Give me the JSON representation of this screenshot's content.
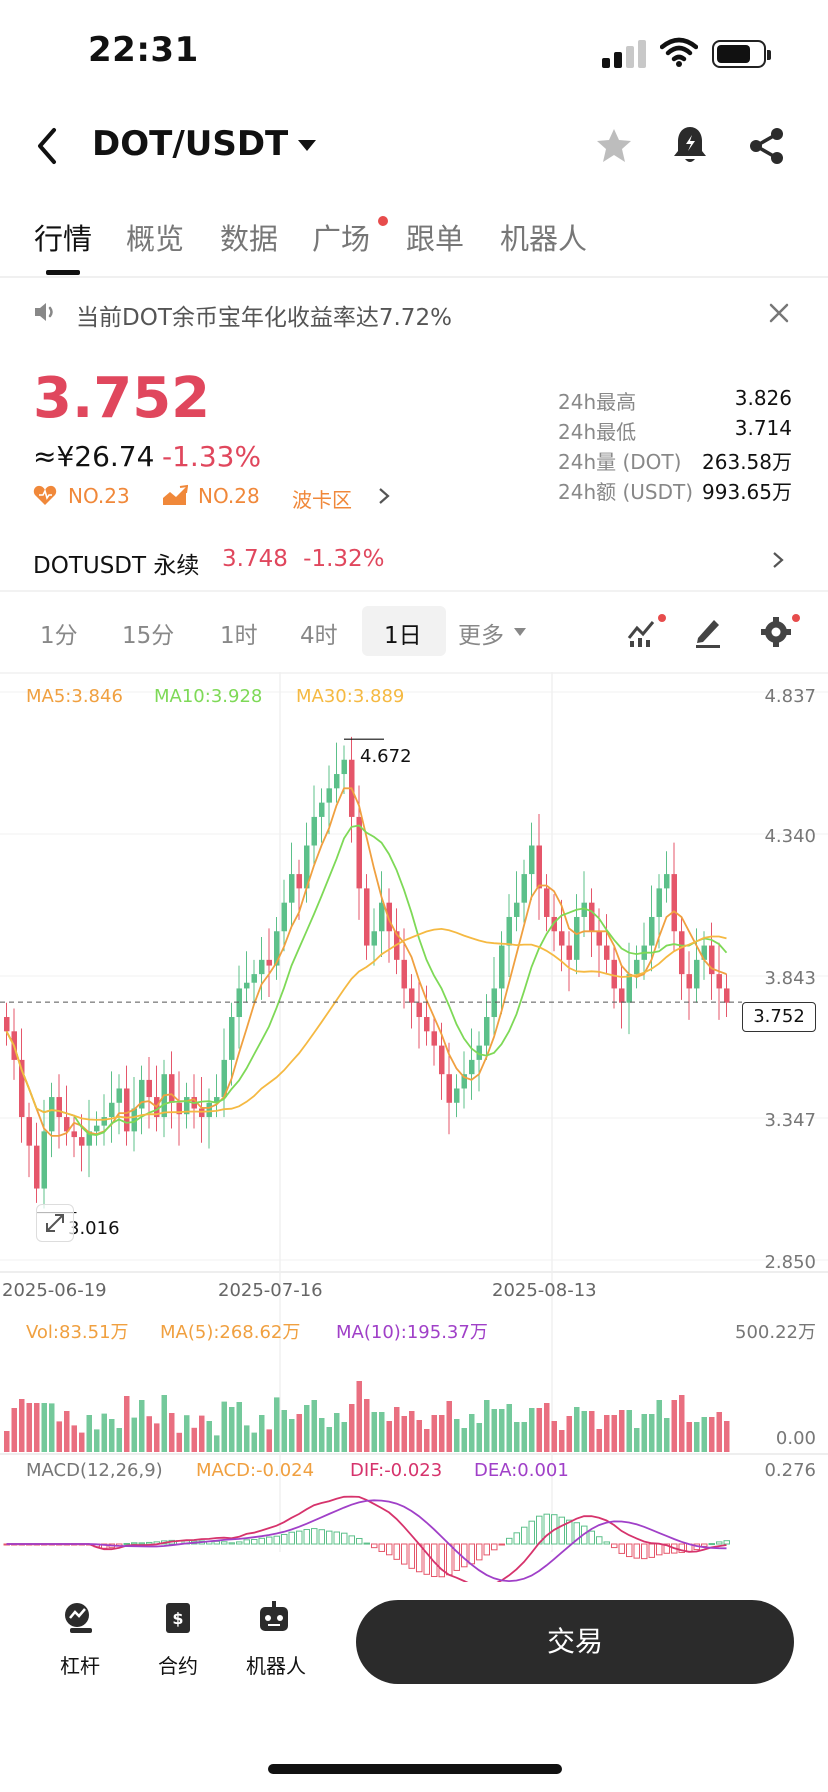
{
  "status_bar": {
    "time": "22:31"
  },
  "header": {
    "pair": "DOT/USDT"
  },
  "tabs": [
    {
      "label": "行情",
      "active": true
    },
    {
      "label": "概览"
    },
    {
      "label": "数据"
    },
    {
      "label": "广场",
      "dot": true
    },
    {
      "label": "跟单"
    },
    {
      "label": "机器人"
    }
  ],
  "notice": {
    "text": "当前DOT余币宝年化收益率达7.72%"
  },
  "price": {
    "last": "3.752",
    "cny": "≈¥26.74",
    "change": "-1.33%",
    "rank1": "NO.23",
    "rank2": "NO.28",
    "sector": "波卡区"
  },
  "stats": [
    {
      "label": "24h最高",
      "value": "3.826"
    },
    {
      "label": "24h最低",
      "value": "3.714"
    },
    {
      "label": "24h量 (DOT)",
      "value": "263.58万"
    },
    {
      "label": "24h额 (USDT)",
      "value": "993.65万"
    }
  ],
  "perpetual": {
    "label": "DOTUSDT 永续",
    "price": "3.748",
    "change": "-1.32%"
  },
  "intervals": [
    {
      "label": "1分"
    },
    {
      "label": "15分"
    },
    {
      "label": "1时"
    },
    {
      "label": "4时"
    },
    {
      "label": "1日",
      "active": true
    },
    {
      "label": "更多"
    }
  ],
  "colors": {
    "up": "#5cc08a",
    "down": "#e5566a",
    "ma5": "#f0a040",
    "ma10": "#7ed957",
    "ma30": "#f5b942"
  },
  "chart": {
    "ma_legend": {
      "ma5": "MA5:3.846",
      "ma10": "MA10:3.928",
      "ma30": "MA30:3.889"
    },
    "y_ticks": [
      "4.837",
      "4.340",
      "3.843",
      "3.347",
      "2.850"
    ],
    "x_ticks": [
      "2025-06-19",
      "2025-07-16",
      "2025-08-13"
    ],
    "high_label": "4.672",
    "low_label": "3.016",
    "last_tag": "3.752"
  },
  "volume": {
    "vol": "Vol:83.51万",
    "ma5": "MA(5):268.62万",
    "ma10": "MA(10):195.37万",
    "top": "500.22万",
    "bottom": "0.00"
  },
  "macd": {
    "title": "MACD(12,26,9)",
    "macd": "MACD:-0.024",
    "dif": "DIF:-0.023",
    "dea": "DEA:0.001",
    "top": "0.276"
  },
  "bottom_nav": [
    {
      "label": "杠杆"
    },
    {
      "label": "合约"
    },
    {
      "label": "机器人"
    }
  ],
  "trade_button": "交易",
  "chart_data": {
    "type": "candlestick",
    "y_range": [
      2.85,
      4.837
    ],
    "x_ticks": [
      "2025-06-19",
      "2025-07-16",
      "2025-08-13"
    ],
    "closes": [
      3.65,
      3.55,
      3.35,
      3.25,
      3.1,
      3.3,
      3.42,
      3.35,
      3.3,
      3.28,
      3.25,
      3.3,
      3.32,
      3.35,
      3.4,
      3.45,
      3.3,
      3.38,
      3.48,
      3.42,
      3.35,
      3.5,
      3.4,
      3.36,
      3.42,
      3.38,
      3.35,
      3.4,
      3.42,
      3.55,
      3.7,
      3.8,
      3.82,
      3.85,
      3.9,
      3.88,
      4.0,
      4.1,
      4.2,
      4.15,
      4.3,
      4.4,
      4.45,
      4.5,
      4.55,
      4.6,
      4.4,
      4.15,
      3.95,
      4.0,
      4.1,
      4.0,
      3.9,
      3.8,
      3.75,
      3.7,
      3.65,
      3.6,
      3.5,
      3.4,
      3.45,
      3.5,
      3.55,
      3.6,
      3.7,
      3.8,
      3.95,
      4.05,
      4.1,
      4.2,
      4.3,
      4.15,
      4.05,
      4.0,
      3.95,
      3.9,
      4.05,
      4.1,
      4.0,
      3.95,
      3.9,
      3.8,
      3.75,
      3.85,
      3.9,
      3.95,
      4.05,
      4.15,
      4.2,
      4.0,
      3.85,
      3.8,
      3.9,
      3.95,
      3.85,
      3.8,
      3.75
    ],
    "high": 4.672,
    "low": 3.016,
    "last": 3.752
  }
}
